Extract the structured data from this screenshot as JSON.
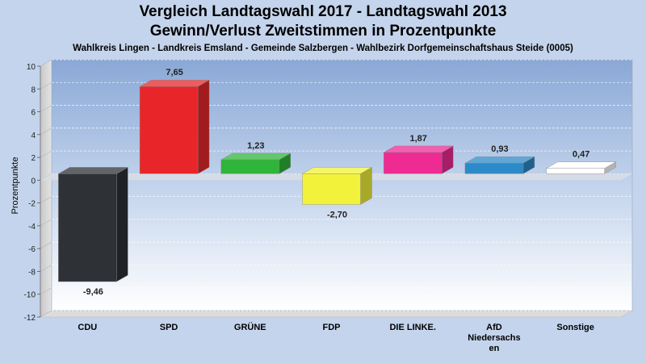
{
  "title": "Vergleich Landtagswahl 2017 - Landtagswahl 2013",
  "subtitle": "Gewinn/Verlust Zweitstimmen in Prozentpunkte",
  "subsubtitle": "Wahlkreis Lingen - Landkreis Emsland - Gemeinde Salzbergen - Wahlbezirk Dorfgemeinschaftshaus Steide (0005)",
  "chart_data": {
    "type": "bar",
    "ylabel": "Prozentpunkte",
    "xlabel": "",
    "ylim": [
      -12,
      10
    ],
    "yticks": [
      -12,
      -10,
      -8,
      -6,
      -4,
      -2,
      0,
      2,
      4,
      6,
      8,
      10
    ],
    "grid": true,
    "categories": [
      "CDU",
      "SPD",
      "GRÜNE",
      "FDP",
      "DIE LINKE.",
      "AfD Niedersachsen",
      "Sonstige"
    ],
    "category_label_lines": [
      [
        "CDU"
      ],
      [
        "SPD"
      ],
      [
        "GRÜNE"
      ],
      [
        "FDP"
      ],
      [
        "DIE LINKE."
      ],
      [
        "AfD",
        "Niedersachs",
        "en"
      ],
      [
        "Sonstige"
      ]
    ],
    "values": [
      -9.46,
      7.65,
      1.23,
      -2.7,
      1.87,
      0.93,
      0.47
    ],
    "value_labels": [
      "-9,46",
      "7,65",
      "1,23",
      "-2,70",
      "1,87",
      "0,93",
      "0,47"
    ],
    "colors": [
      "#2e3236",
      "#e8262a",
      "#2eb53a",
      "#f2f23a",
      "#ee2a93",
      "#2c8ac8",
      "#ffffff"
    ]
  }
}
